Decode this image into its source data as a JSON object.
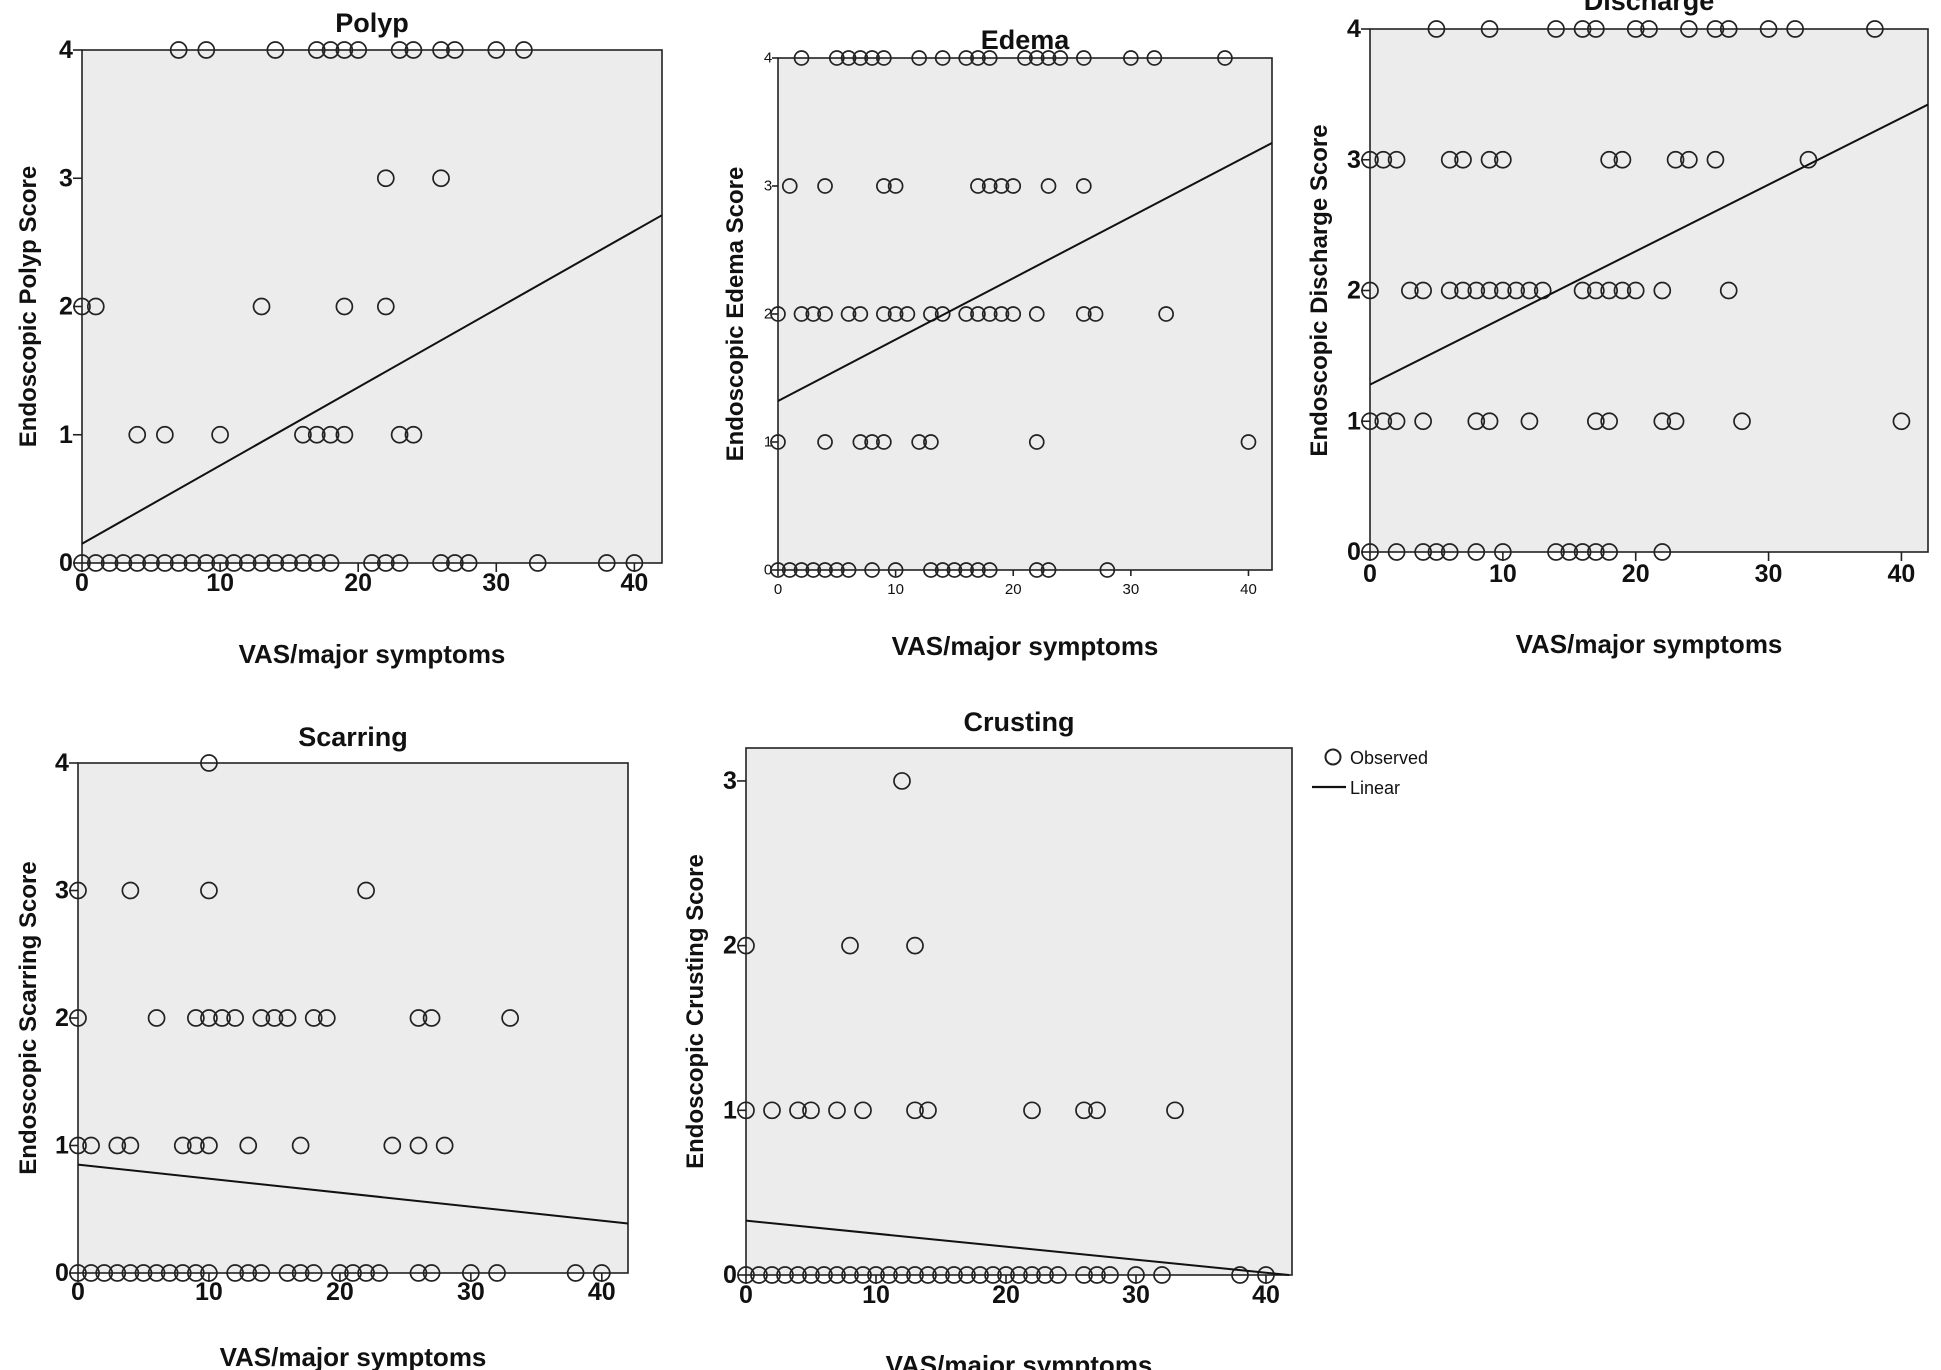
{
  "legend": {
    "observed": "Observed",
    "linear": "Linear"
  },
  "colors": {
    "panel_bg": "#ececec",
    "marker": "#222222",
    "line": "#111111"
  },
  "chart_data": [
    {
      "type": "scatter",
      "title": "Polyp",
      "xlabel": "VAS/major symptoms",
      "ylabel": "Endoscopic Polyp Score",
      "xlim": [
        0,
        42
      ],
      "ylim": [
        0,
        4
      ],
      "xticks": [
        0,
        10,
        20,
        30,
        40
      ],
      "yticks": [
        0,
        1,
        2,
        3,
        4
      ],
      "fit": {
        "intercept": 0.15,
        "slope": 0.061
      },
      "points": [
        [
          7,
          4
        ],
        [
          9,
          4
        ],
        [
          14,
          4
        ],
        [
          17,
          4
        ],
        [
          18,
          4
        ],
        [
          19,
          4
        ],
        [
          20,
          4
        ],
        [
          23,
          4
        ],
        [
          24,
          4
        ],
        [
          26,
          4
        ],
        [
          27,
          4
        ],
        [
          30,
          4
        ],
        [
          32,
          4
        ],
        [
          22,
          3
        ],
        [
          26,
          3
        ],
        [
          0,
          2
        ],
        [
          1,
          2
        ],
        [
          13,
          2
        ],
        [
          19,
          2
        ],
        [
          22,
          2
        ],
        [
          4,
          1
        ],
        [
          6,
          1
        ],
        [
          10,
          1
        ],
        [
          16,
          1
        ],
        [
          17,
          1
        ],
        [
          18,
          1
        ],
        [
          19,
          1
        ],
        [
          23,
          1
        ],
        [
          24,
          1
        ],
        [
          0,
          0
        ],
        [
          1,
          0
        ],
        [
          2,
          0
        ],
        [
          3,
          0
        ],
        [
          4,
          0
        ],
        [
          5,
          0
        ],
        [
          6,
          0
        ],
        [
          7,
          0
        ],
        [
          8,
          0
        ],
        [
          9,
          0
        ],
        [
          10,
          0
        ],
        [
          11,
          0
        ],
        [
          12,
          0
        ],
        [
          13,
          0
        ],
        [
          14,
          0
        ],
        [
          15,
          0
        ],
        [
          16,
          0
        ],
        [
          17,
          0
        ],
        [
          18,
          0
        ],
        [
          21,
          0
        ],
        [
          22,
          0
        ],
        [
          23,
          0
        ],
        [
          26,
          0
        ],
        [
          27,
          0
        ],
        [
          28,
          0
        ],
        [
          33,
          0
        ],
        [
          38,
          0
        ],
        [
          40,
          0
        ]
      ]
    },
    {
      "type": "scatter",
      "title": "Edema",
      "xlabel": "VAS/major symptoms",
      "ylabel": "Endoscopic Edema Score",
      "xlim": [
        0,
        42
      ],
      "ylim": [
        0,
        4
      ],
      "xticks": [
        0,
        10,
        20,
        30,
        40
      ],
      "yticks": [
        0,
        1,
        2,
        3,
        4
      ],
      "fit": {
        "intercept": 1.32,
        "slope": 0.048
      },
      "points": [
        [
          2,
          4
        ],
        [
          5,
          4
        ],
        [
          6,
          4
        ],
        [
          7,
          4
        ],
        [
          8,
          4
        ],
        [
          9,
          4
        ],
        [
          12,
          4
        ],
        [
          14,
          4
        ],
        [
          16,
          4
        ],
        [
          17,
          4
        ],
        [
          18,
          4
        ],
        [
          21,
          4
        ],
        [
          22,
          4
        ],
        [
          23,
          4
        ],
        [
          24,
          4
        ],
        [
          26,
          4
        ],
        [
          30,
          4
        ],
        [
          32,
          4
        ],
        [
          38,
          4
        ],
        [
          1,
          3
        ],
        [
          4,
          3
        ],
        [
          9,
          3
        ],
        [
          10,
          3
        ],
        [
          17,
          3
        ],
        [
          18,
          3
        ],
        [
          19,
          3
        ],
        [
          20,
          3
        ],
        [
          23,
          3
        ],
        [
          26,
          3
        ],
        [
          0,
          2
        ],
        [
          2,
          2
        ],
        [
          3,
          2
        ],
        [
          4,
          2
        ],
        [
          6,
          2
        ],
        [
          7,
          2
        ],
        [
          9,
          2
        ],
        [
          10,
          2
        ],
        [
          11,
          2
        ],
        [
          13,
          2
        ],
        [
          14,
          2
        ],
        [
          16,
          2
        ],
        [
          17,
          2
        ],
        [
          18,
          2
        ],
        [
          19,
          2
        ],
        [
          20,
          2
        ],
        [
          22,
          2
        ],
        [
          26,
          2
        ],
        [
          27,
          2
        ],
        [
          33,
          2
        ],
        [
          0,
          1
        ],
        [
          4,
          1
        ],
        [
          7,
          1
        ],
        [
          8,
          1
        ],
        [
          9,
          1
        ],
        [
          12,
          1
        ],
        [
          13,
          1
        ],
        [
          22,
          1
        ],
        [
          40,
          1
        ],
        [
          0,
          0
        ],
        [
          1,
          0
        ],
        [
          2,
          0
        ],
        [
          3,
          0
        ],
        [
          4,
          0
        ],
        [
          5,
          0
        ],
        [
          6,
          0
        ],
        [
          8,
          0
        ],
        [
          10,
          0
        ],
        [
          13,
          0
        ],
        [
          14,
          0
        ],
        [
          15,
          0
        ],
        [
          16,
          0
        ],
        [
          17,
          0
        ],
        [
          18,
          0
        ],
        [
          22,
          0
        ],
        [
          23,
          0
        ],
        [
          28,
          0
        ]
      ]
    },
    {
      "type": "scatter",
      "title": "Discharge",
      "xlabel": "VAS/major symptoms",
      "ylabel": "Endoscopic Discharge Score",
      "xlim": [
        0,
        42
      ],
      "ylim": [
        0,
        4
      ],
      "xticks": [
        0,
        10,
        20,
        30,
        40
      ],
      "yticks": [
        0,
        1,
        2,
        3,
        4
      ],
      "fit": {
        "intercept": 1.28,
        "slope": 0.051
      },
      "points": [
        [
          5,
          4
        ],
        [
          9,
          4
        ],
        [
          14,
          4
        ],
        [
          16,
          4
        ],
        [
          17,
          4
        ],
        [
          20,
          4
        ],
        [
          21,
          4
        ],
        [
          24,
          4
        ],
        [
          26,
          4
        ],
        [
          27,
          4
        ],
        [
          30,
          4
        ],
        [
          32,
          4
        ],
        [
          38,
          4
        ],
        [
          0,
          3
        ],
        [
          1,
          3
        ],
        [
          2,
          3
        ],
        [
          6,
          3
        ],
        [
          7,
          3
        ],
        [
          9,
          3
        ],
        [
          10,
          3
        ],
        [
          18,
          3
        ],
        [
          19,
          3
        ],
        [
          23,
          3
        ],
        [
          24,
          3
        ],
        [
          26,
          3
        ],
        [
          33,
          3
        ],
        [
          0,
          2
        ],
        [
          3,
          2
        ],
        [
          4,
          2
        ],
        [
          6,
          2
        ],
        [
          7,
          2
        ],
        [
          8,
          2
        ],
        [
          9,
          2
        ],
        [
          10,
          2
        ],
        [
          11,
          2
        ],
        [
          12,
          2
        ],
        [
          13,
          2
        ],
        [
          16,
          2
        ],
        [
          17,
          2
        ],
        [
          18,
          2
        ],
        [
          19,
          2
        ],
        [
          20,
          2
        ],
        [
          22,
          2
        ],
        [
          27,
          2
        ],
        [
          0,
          1
        ],
        [
          1,
          1
        ],
        [
          2,
          1
        ],
        [
          4,
          1
        ],
        [
          8,
          1
        ],
        [
          9,
          1
        ],
        [
          12,
          1
        ],
        [
          17,
          1
        ],
        [
          18,
          1
        ],
        [
          22,
          1
        ],
        [
          23,
          1
        ],
        [
          28,
          1
        ],
        [
          40,
          1
        ],
        [
          0,
          0
        ],
        [
          2,
          0
        ],
        [
          4,
          0
        ],
        [
          5,
          0
        ],
        [
          6,
          0
        ],
        [
          8,
          0
        ],
        [
          10,
          0
        ],
        [
          14,
          0
        ],
        [
          15,
          0
        ],
        [
          16,
          0
        ],
        [
          17,
          0
        ],
        [
          18,
          0
        ],
        [
          22,
          0
        ]
      ]
    },
    {
      "type": "scatter",
      "title": "Scarring",
      "xlabel": "VAS/major symptoms",
      "ylabel": "Endoscopic Scarring Score",
      "xlim": [
        0,
        42
      ],
      "ylim": [
        0,
        4
      ],
      "xticks": [
        0,
        10,
        20,
        30,
        40
      ],
      "yticks": [
        0,
        1,
        2,
        3,
        4
      ],
      "fit": {
        "intercept": 0.85,
        "slope": -0.011
      },
      "points": [
        [
          10,
          4
        ],
        [
          0,
          3
        ],
        [
          4,
          3
        ],
        [
          10,
          3
        ],
        [
          22,
          3
        ],
        [
          0,
          2
        ],
        [
          6,
          2
        ],
        [
          9,
          2
        ],
        [
          10,
          2
        ],
        [
          11,
          2
        ],
        [
          12,
          2
        ],
        [
          14,
          2
        ],
        [
          15,
          2
        ],
        [
          16,
          2
        ],
        [
          18,
          2
        ],
        [
          19,
          2
        ],
        [
          26,
          2
        ],
        [
          27,
          2
        ],
        [
          33,
          2
        ],
        [
          0,
          1
        ],
        [
          1,
          1
        ],
        [
          3,
          1
        ],
        [
          4,
          1
        ],
        [
          8,
          1
        ],
        [
          9,
          1
        ],
        [
          10,
          1
        ],
        [
          13,
          1
        ],
        [
          17,
          1
        ],
        [
          24,
          1
        ],
        [
          26,
          1
        ],
        [
          28,
          1
        ],
        [
          0,
          0
        ],
        [
          1,
          0
        ],
        [
          2,
          0
        ],
        [
          3,
          0
        ],
        [
          4,
          0
        ],
        [
          5,
          0
        ],
        [
          6,
          0
        ],
        [
          7,
          0
        ],
        [
          8,
          0
        ],
        [
          9,
          0
        ],
        [
          10,
          0
        ],
        [
          12,
          0
        ],
        [
          13,
          0
        ],
        [
          14,
          0
        ],
        [
          16,
          0
        ],
        [
          17,
          0
        ],
        [
          18,
          0
        ],
        [
          20,
          0
        ],
        [
          21,
          0
        ],
        [
          22,
          0
        ],
        [
          23,
          0
        ],
        [
          26,
          0
        ],
        [
          27,
          0
        ],
        [
          30,
          0
        ],
        [
          32,
          0
        ],
        [
          38,
          0
        ],
        [
          40,
          0
        ]
      ]
    },
    {
      "type": "scatter",
      "title": "Crusting",
      "xlabel": "VAS/major symptoms",
      "ylabel": "Endoscopic Crusting Score",
      "xlim": [
        0,
        42
      ],
      "ylim": [
        0,
        3.2
      ],
      "xticks": [
        0,
        10,
        20,
        30,
        40
      ],
      "yticks": [
        0,
        1,
        2,
        3
      ],
      "fit": {
        "intercept": 0.33,
        "slope": -0.0079
      },
      "points": [
        [
          12,
          3
        ],
        [
          0,
          2
        ],
        [
          8,
          2
        ],
        [
          13,
          2
        ],
        [
          0,
          1
        ],
        [
          2,
          1
        ],
        [
          4,
          1
        ],
        [
          5,
          1
        ],
        [
          7,
          1
        ],
        [
          9,
          1
        ],
        [
          13,
          1
        ],
        [
          14,
          1
        ],
        [
          22,
          1
        ],
        [
          26,
          1
        ],
        [
          27,
          1
        ],
        [
          33,
          1
        ],
        [
          0,
          0
        ],
        [
          1,
          0
        ],
        [
          2,
          0
        ],
        [
          3,
          0
        ],
        [
          4,
          0
        ],
        [
          5,
          0
        ],
        [
          6,
          0
        ],
        [
          7,
          0
        ],
        [
          8,
          0
        ],
        [
          9,
          0
        ],
        [
          10,
          0
        ],
        [
          11,
          0
        ],
        [
          12,
          0
        ],
        [
          13,
          0
        ],
        [
          14,
          0
        ],
        [
          15,
          0
        ],
        [
          16,
          0
        ],
        [
          17,
          0
        ],
        [
          18,
          0
        ],
        [
          19,
          0
        ],
        [
          20,
          0
        ],
        [
          21,
          0
        ],
        [
          22,
          0
        ],
        [
          23,
          0
        ],
        [
          24,
          0
        ],
        [
          26,
          0
        ],
        [
          27,
          0
        ],
        [
          28,
          0
        ],
        [
          30,
          0
        ],
        [
          32,
          0
        ],
        [
          38,
          0
        ],
        [
          40,
          0
        ]
      ]
    }
  ]
}
